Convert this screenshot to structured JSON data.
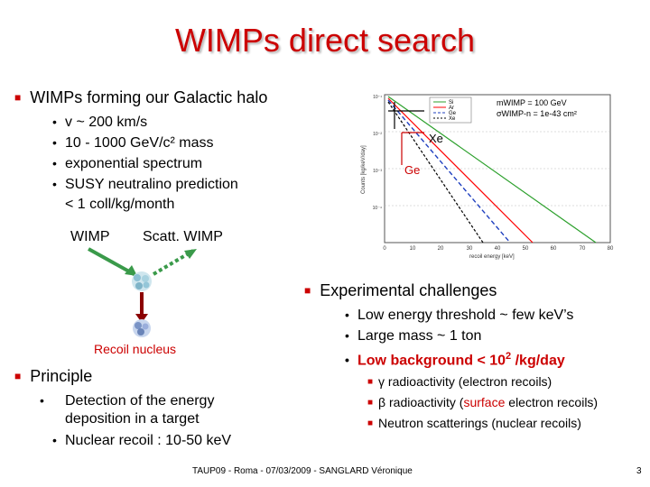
{
  "slide": {
    "title": "WIMPs direct search",
    "halo": {
      "heading": "WIMPs forming our Galactic halo",
      "items": [
        "v ~ 200 km/s",
        "10 - 1000 GeV/c² mass",
        "exponential spectrum",
        "SUSY neutralino prediction"
      ],
      "item_extra": "< 1 coll/kg/month"
    },
    "diagram": {
      "wimp_label": "WIMP",
      "scatt_label": "Scatt. WIMP",
      "recoil_label": "Recoil nucleus"
    },
    "plot": {
      "legend_targets": [
        "Si",
        "Ar",
        "Ge",
        "Xe"
      ],
      "legend_mass": "mWIMP = 100 GeV",
      "legend_sigma": "σWIMP-n = 1e-43 cm²",
      "xtick_labels": [
        "0",
        "10",
        "20",
        "30",
        "40",
        "50",
        "60",
        "70",
        "80"
      ],
      "xlabel": "recoil energy [keV]",
      "ylabel": "Counts [kg/keV/day]",
      "ytick_labels": [
        "10⁻¹",
        "10⁻²",
        "10⁻³",
        "10⁻⁴"
      ],
      "xe_label": "Xe",
      "ge_label": "Ge",
      "colors": {
        "Si": "#2ca02c",
        "Ar": "#ff0000",
        "Ge": "#1f3fbf",
        "Xe": "#000000"
      }
    },
    "challenges": {
      "heading": "Experimental challenges",
      "items": [
        "Low energy threshold ~ few keV’s",
        "Large mass ~ 1 ton"
      ],
      "highlight_prefix": "Low background < 10",
      "highlight_exp": "2",
      "highlight_suffix": " /kg/day",
      "sub_items": {
        "gamma_symbol": "γ",
        "gamma_text": " radioactivity (electron recoils)",
        "beta_symbol": "β",
        "beta_text_1": " radioactivity (",
        "beta_surface": "surface",
        "beta_text_2": " electron recoils)",
        "neutron_text": "Neutron scatterings (nuclear recoils)"
      }
    },
    "principle": {
      "heading": "Principle",
      "items": [
        "Detection of the energy deposition in a target",
        "Nuclear recoil : 10-50 keV"
      ]
    },
    "footer": {
      "text": "TAUP09 - Roma - 07/03/2009 - SANGLARD Véronique",
      "page": "3"
    }
  }
}
